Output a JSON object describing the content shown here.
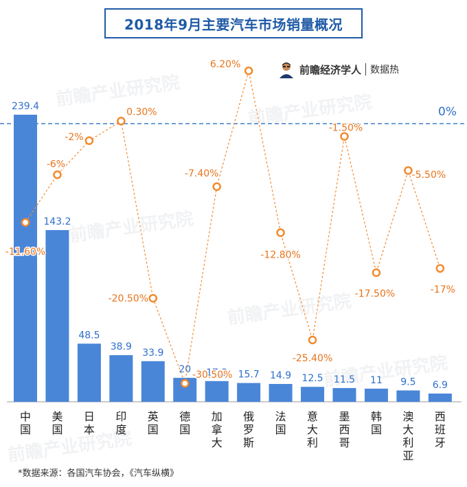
{
  "title": "2018年9月主要汽车市场销量概况",
  "brand": {
    "name": "前瞻经济学人",
    "sub": "数据热",
    "avatar_icon": "person-thinking-icon"
  },
  "watermark": "前瞻产业研究院",
  "source": "*数据来源：各国汽车协会，《汽车纵横》",
  "zero_line_label": "0%",
  "colors": {
    "bar": "#4a86d8",
    "bar_label": "#2e6fc9",
    "line": "#f28a2e",
    "line_label": "#e8731a",
    "zero_line": "#3d7dc8",
    "title": "#1f5aa6"
  },
  "chart_data": {
    "type": "bar+line",
    "categories": [
      "中国",
      "美国",
      "日本",
      "印度",
      "英国",
      "德国",
      "加拿大",
      "俄罗斯",
      "法国",
      "意大利",
      "墨西哥",
      "韩国",
      "澳大利亚",
      "西班牙"
    ],
    "series": [
      {
        "type": "bar",
        "values": [
          239.4,
          143.2,
          48.5,
          38.9,
          33.9,
          20,
          17.3,
          15.7,
          14.9,
          12.5,
          11.5,
          11,
          9.5,
          6.9
        ],
        "labels": [
          "239.4",
          "143.2",
          "48.5",
          "38.9",
          "33.9",
          "20",
          "17.3",
          "15.7",
          "14.9",
          "12.5",
          "11.5",
          "11",
          "9.5",
          "6.9"
        ]
      },
      {
        "type": "line",
        "values": [
          -11.6,
          -6,
          -2,
          0.3,
          -20.5,
          -30.5,
          -7.4,
          6.2,
          -12.8,
          -25.4,
          -1.5,
          -17.5,
          -5.5,
          -17
        ],
        "labels": [
          "-11.60%",
          "-6%",
          "-2%",
          "0.30%",
          "-20.50%",
          "-30.50%",
          "-7.40%",
          "6.20%",
          "-12.80%",
          "-25.40%",
          "-1.50%",
          "-17.50%",
          "-5.50%",
          "-17%"
        ]
      }
    ],
    "bar_axis_range": [
      0,
      239.4
    ],
    "line_axis_range": [
      -31,
      8
    ],
    "grid": false
  }
}
